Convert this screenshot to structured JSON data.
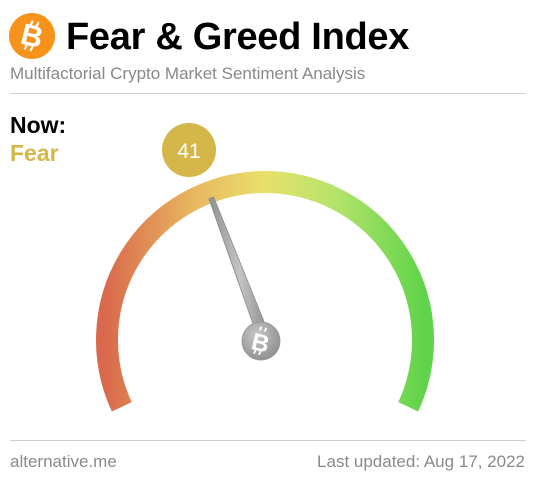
{
  "header": {
    "title": "Fear & Greed Index",
    "subtitle": "Multifactorial Crypto Market Sentiment Analysis",
    "logo_icon": "bitcoin-icon",
    "logo_color": "#f7931a"
  },
  "status": {
    "now_label": "Now:",
    "classification": "Fear",
    "classification_color": "#d4b649"
  },
  "gauge": {
    "value": "41",
    "min": 0,
    "max": 100,
    "badge_color": "#d4b649",
    "colors": {
      "extreme_fear": "#d9694c",
      "fear": "#e8b860",
      "neutral": "#e8e06a",
      "greed": "#b5e36a",
      "extreme_greed": "#5fd34a"
    },
    "needle_icon": "bitcoin-icon"
  },
  "footer": {
    "source": "alternative.me",
    "last_updated": "Last updated: Aug 17, 2022"
  }
}
